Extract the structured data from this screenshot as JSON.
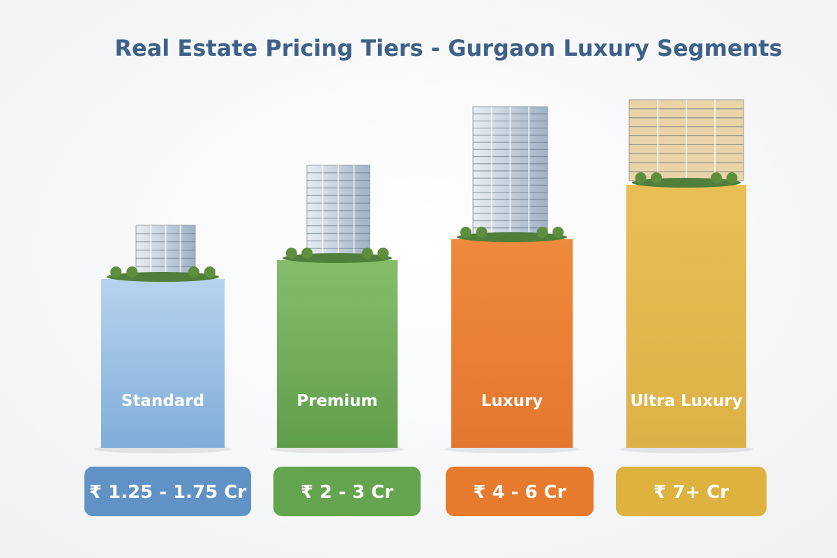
{
  "header": {
    "title": "Real Estate Pricing Tiers - Gurgaon Luxury Segments"
  },
  "tiers": [
    {
      "name": "Standard",
      "price": "₹ 1.25 - 1.75 Cr"
    },
    {
      "name": "Premium",
      "price": "₹ 2 - 3 Cr"
    },
    {
      "name": "Luxury",
      "price": "₹ 4 - 6 Cr"
    },
    {
      "name": "Ultra Luxury",
      "price": "₹ 7+ Cr"
    }
  ]
}
